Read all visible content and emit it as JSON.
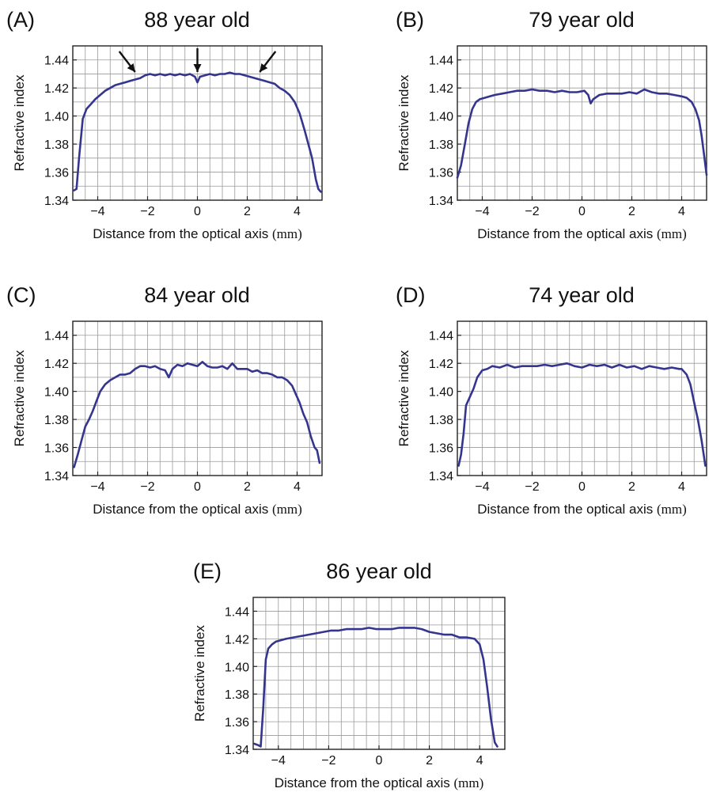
{
  "chart_data": [
    {
      "type": "line",
      "panel_label": "(A)",
      "title": "88 year old",
      "xlabel": "Distance from the optical axis",
      "xunit": "(mm)",
      "ylabel": "Refractive index",
      "xlim": [
        -5,
        5
      ],
      "ylim": [
        1.34,
        1.45
      ],
      "xticks": [
        "−4",
        "−2",
        "0",
        "2",
        "4"
      ],
      "yticks": [
        "1.34",
        "1.36",
        "1.38",
        "1.40",
        "1.42",
        "1.44"
      ],
      "grid": true,
      "annotations": [
        "arrow at -2.5",
        "arrow at 0",
        "arrow at 2.5"
      ],
      "series": [
        {
          "x": [
            -4.95,
            -4.85,
            -4.75,
            -4.6,
            -4.45,
            -4.3,
            -4.1,
            -3.9,
            -3.7,
            -3.5,
            -3.3,
            -3.1,
            -2.9,
            -2.7,
            -2.5,
            -2.3,
            -2.1,
            -1.9,
            -1.7,
            -1.5,
            -1.3,
            -1.1,
            -0.9,
            -0.7,
            -0.5,
            -0.3,
            -0.1,
            0.0,
            0.1,
            0.3,
            0.5,
            0.7,
            0.9,
            1.1,
            1.3,
            1.5,
            1.7,
            1.9,
            2.1,
            2.3,
            2.5,
            2.7,
            2.9,
            3.1,
            3.3,
            3.5,
            3.7,
            3.9,
            4.1,
            4.3,
            4.45,
            4.6,
            4.75,
            4.85,
            4.95
          ],
          "y": [
            1.347,
            1.348,
            1.37,
            1.398,
            1.405,
            1.408,
            1.412,
            1.415,
            1.418,
            1.42,
            1.422,
            1.423,
            1.424,
            1.425,
            1.426,
            1.427,
            1.429,
            1.43,
            1.429,
            1.43,
            1.429,
            1.43,
            1.429,
            1.43,
            1.429,
            1.43,
            1.428,
            1.424,
            1.428,
            1.429,
            1.43,
            1.429,
            1.43,
            1.43,
            1.431,
            1.43,
            1.43,
            1.429,
            1.428,
            1.427,
            1.426,
            1.425,
            1.424,
            1.423,
            1.42,
            1.418,
            1.415,
            1.41,
            1.402,
            1.39,
            1.38,
            1.37,
            1.355,
            1.348,
            1.346
          ]
        }
      ]
    },
    {
      "type": "line",
      "panel_label": "(B)",
      "title": "79 year old",
      "xlabel": "Distance from the optical axis",
      "xunit": "(mm)",
      "ylabel": "Refractive index",
      "xlim": [
        -5,
        5
      ],
      "ylim": [
        1.34,
        1.45
      ],
      "xticks": [
        "−4",
        "−2",
        "0",
        "2",
        "4"
      ],
      "yticks": [
        "1.34",
        "1.36",
        "1.38",
        "1.40",
        "1.42",
        "1.44"
      ],
      "grid": true,
      "series": [
        {
          "x": [
            -5.0,
            -4.85,
            -4.7,
            -4.55,
            -4.4,
            -4.25,
            -4.1,
            -3.9,
            -3.7,
            -3.5,
            -3.2,
            -2.9,
            -2.6,
            -2.3,
            -2.0,
            -1.7,
            -1.4,
            -1.1,
            -0.8,
            -0.5,
            -0.2,
            0.1,
            0.25,
            0.35,
            0.45,
            0.7,
            1.0,
            1.3,
            1.6,
            1.9,
            2.2,
            2.5,
            2.8,
            3.1,
            3.4,
            3.7,
            4.0,
            4.2,
            4.4,
            4.55,
            4.7,
            4.8,
            4.9,
            5.0
          ],
          "y": [
            1.356,
            1.365,
            1.38,
            1.395,
            1.405,
            1.41,
            1.412,
            1.413,
            1.414,
            1.415,
            1.416,
            1.417,
            1.418,
            1.418,
            1.419,
            1.418,
            1.418,
            1.417,
            1.418,
            1.417,
            1.417,
            1.418,
            1.415,
            1.409,
            1.412,
            1.415,
            1.416,
            1.416,
            1.416,
            1.417,
            1.416,
            1.419,
            1.417,
            1.416,
            1.416,
            1.415,
            1.414,
            1.413,
            1.41,
            1.405,
            1.397,
            1.386,
            1.372,
            1.358
          ]
        }
      ]
    },
    {
      "type": "line",
      "panel_label": "(C)",
      "title": "84 year old",
      "xlabel": "Distance from the optical axis",
      "xunit": "(mm)",
      "ylabel": "Refractive index",
      "xlim": [
        -5,
        5
      ],
      "ylim": [
        1.34,
        1.45
      ],
      "xticks": [
        "−4",
        "−2",
        "0",
        "2",
        "4"
      ],
      "yticks": [
        "1.34",
        "1.36",
        "1.38",
        "1.40",
        "1.42",
        "1.44"
      ],
      "grid": true,
      "series": [
        {
          "x": [
            -4.95,
            -4.8,
            -4.65,
            -4.5,
            -4.35,
            -4.2,
            -4.05,
            -3.9,
            -3.7,
            -3.5,
            -3.3,
            -3.1,
            -2.9,
            -2.7,
            -2.5,
            -2.3,
            -2.1,
            -1.9,
            -1.7,
            -1.5,
            -1.3,
            -1.15,
            -1.0,
            -0.8,
            -0.6,
            -0.4,
            -0.2,
            0.0,
            0.2,
            0.4,
            0.6,
            0.8,
            1.0,
            1.2,
            1.4,
            1.6,
            1.8,
            2.0,
            2.2,
            2.4,
            2.6,
            2.8,
            3.0,
            3.2,
            3.4,
            3.6,
            3.8,
            3.95,
            4.1,
            4.25,
            4.4,
            4.55,
            4.7,
            4.8,
            4.9
          ],
          "y": [
            1.346,
            1.355,
            1.365,
            1.375,
            1.38,
            1.386,
            1.393,
            1.4,
            1.405,
            1.408,
            1.41,
            1.412,
            1.412,
            1.413,
            1.416,
            1.418,
            1.418,
            1.417,
            1.418,
            1.416,
            1.415,
            1.41,
            1.416,
            1.419,
            1.418,
            1.42,
            1.419,
            1.418,
            1.421,
            1.418,
            1.417,
            1.417,
            1.418,
            1.416,
            1.42,
            1.416,
            1.416,
            1.416,
            1.414,
            1.415,
            1.413,
            1.413,
            1.412,
            1.41,
            1.41,
            1.408,
            1.404,
            1.398,
            1.392,
            1.384,
            1.378,
            1.368,
            1.36,
            1.358,
            1.349
          ]
        }
      ]
    },
    {
      "type": "line",
      "panel_label": "(D)",
      "title": "74 year old",
      "xlabel": "Distance from the optical axis",
      "xunit": "(mm)",
      "ylabel": "Refractive index",
      "xlim": [
        -5,
        5
      ],
      "ylim": [
        1.34,
        1.45
      ],
      "xticks": [
        "−4",
        "−2",
        "0",
        "2",
        "4"
      ],
      "yticks": [
        "1.34",
        "1.36",
        "1.38",
        "1.40",
        "1.42",
        "1.44"
      ],
      "grid": true,
      "series": [
        {
          "x": [
            -4.95,
            -4.85,
            -4.75,
            -4.65,
            -4.5,
            -4.35,
            -4.2,
            -4.0,
            -3.8,
            -3.6,
            -3.3,
            -3.0,
            -2.7,
            -2.4,
            -2.1,
            -1.8,
            -1.5,
            -1.2,
            -0.9,
            -0.6,
            -0.3,
            0.0,
            0.3,
            0.6,
            0.9,
            1.2,
            1.5,
            1.8,
            2.1,
            2.4,
            2.7,
            3.0,
            3.3,
            3.6,
            3.9,
            4.0,
            4.1,
            4.2,
            4.35,
            4.5,
            4.65,
            4.8,
            4.95
          ],
          "y": [
            1.347,
            1.355,
            1.37,
            1.39,
            1.396,
            1.402,
            1.41,
            1.415,
            1.416,
            1.418,
            1.417,
            1.419,
            1.417,
            1.418,
            1.418,
            1.418,
            1.419,
            1.418,
            1.419,
            1.42,
            1.418,
            1.417,
            1.419,
            1.418,
            1.419,
            1.417,
            1.419,
            1.417,
            1.418,
            1.416,
            1.418,
            1.417,
            1.416,
            1.417,
            1.416,
            1.416,
            1.414,
            1.412,
            1.405,
            1.392,
            1.38,
            1.365,
            1.347
          ]
        }
      ]
    },
    {
      "type": "line",
      "panel_label": "(E)",
      "title": "86 year old",
      "xlabel": "Distance from the optical axis",
      "xunit": "(mm)",
      "ylabel": "Refractive index",
      "xlim": [
        -5,
        5
      ],
      "ylim": [
        1.34,
        1.45
      ],
      "xticks": [
        "−4",
        "−2",
        "0",
        "2",
        "4"
      ],
      "yticks": [
        "1.34",
        "1.36",
        "1.38",
        "1.40",
        "1.42",
        "1.44"
      ],
      "grid": true,
      "series": [
        {
          "x": [
            -4.95,
            -4.8,
            -4.7,
            -4.6,
            -4.5,
            -4.4,
            -4.25,
            -4.1,
            -3.9,
            -3.7,
            -3.4,
            -3.1,
            -2.8,
            -2.5,
            -2.2,
            -1.9,
            -1.6,
            -1.3,
            -1.0,
            -0.7,
            -0.4,
            -0.1,
            0.2,
            0.5,
            0.8,
            1.1,
            1.4,
            1.7,
            2.0,
            2.3,
            2.6,
            2.9,
            3.2,
            3.5,
            3.8,
            4.0,
            4.15,
            4.3,
            4.45,
            4.6,
            4.7
          ],
          "y": [
            1.344,
            1.343,
            1.342,
            1.37,
            1.405,
            1.413,
            1.416,
            1.418,
            1.419,
            1.42,
            1.421,
            1.422,
            1.423,
            1.424,
            1.425,
            1.426,
            1.426,
            1.427,
            1.427,
            1.427,
            1.428,
            1.427,
            1.427,
            1.427,
            1.428,
            1.428,
            1.428,
            1.427,
            1.425,
            1.424,
            1.423,
            1.423,
            1.421,
            1.421,
            1.42,
            1.416,
            1.405,
            1.385,
            1.362,
            1.345,
            1.342
          ]
        }
      ]
    }
  ]
}
